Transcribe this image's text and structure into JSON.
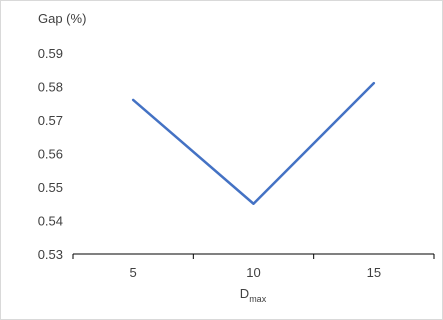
{
  "chart_data": {
    "type": "line",
    "title": "",
    "ylabel": "Gap (%)",
    "xlabel": "D",
    "xlabel_subscript": "max",
    "categories": [
      "5",
      "10",
      "15"
    ],
    "x": [
      5,
      10,
      15
    ],
    "series": [
      {
        "values": [
          0.576,
          0.545,
          0.581
        ],
        "color": "#4472C4"
      }
    ],
    "ylim": [
      0.53,
      0.59
    ],
    "yticks": [
      "0.53",
      "0.54",
      "0.55",
      "0.56",
      "0.57",
      "0.58",
      "0.59"
    ],
    "grid": false,
    "legend": "none"
  }
}
